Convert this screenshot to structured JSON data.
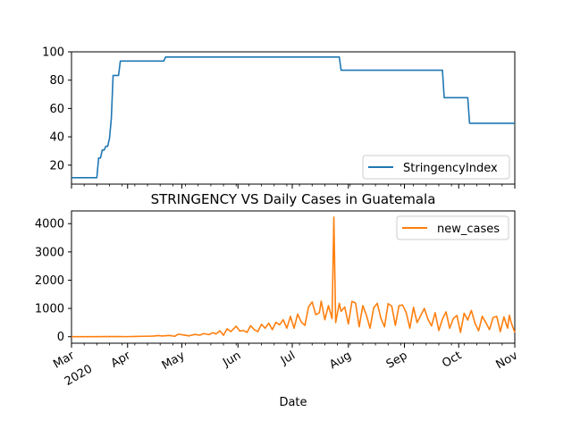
{
  "chart_data": [
    {
      "type": "line",
      "title": "",
      "xlabel": "",
      "ylabel": "",
      "ylim": [
        6.6,
        100
      ],
      "yticks": [
        20,
        40,
        60,
        80,
        100
      ],
      "x_range": [
        "2020-03-01",
        "2020-11-01"
      ],
      "legend_position": "lower right",
      "series": [
        {
          "name": "StringencyIndex",
          "color": "#1f77b4",
          "points": [
            [
              "2020-03-01",
              11.11
            ],
            [
              "2020-03-15",
              11.11
            ],
            [
              "2020-03-16",
              25.0
            ],
            [
              "2020-03-17",
              25.0
            ],
            [
              "2020-03-18",
              30.6
            ],
            [
              "2020-03-19",
              30.6
            ],
            [
              "2020-03-20",
              33.3
            ],
            [
              "2020-03-21",
              33.3
            ],
            [
              "2020-03-22",
              38.9
            ],
            [
              "2020-03-23",
              52.8
            ],
            [
              "2020-03-24",
              83.3
            ],
            [
              "2020-03-27",
              83.3
            ],
            [
              "2020-03-28",
              93.52
            ],
            [
              "2020-04-21",
              93.52
            ],
            [
              "2020-04-22",
              96.3
            ],
            [
              "2020-07-27",
              96.3
            ],
            [
              "2020-07-28",
              87.04
            ],
            [
              "2020-09-22",
              87.04
            ],
            [
              "2020-09-23",
              67.59
            ],
            [
              "2020-10-06",
              67.59
            ],
            [
              "2020-10-07",
              49.54
            ],
            [
              "2020-11-01",
              49.54
            ]
          ]
        }
      ]
    },
    {
      "type": "line",
      "title": "STRINGENCY VS Daily Cases in Guatemala",
      "xlabel": "Date",
      "ylabel": "",
      "ylim": [
        -230,
        4450
      ],
      "yticks": [
        0,
        1000,
        2000,
        3000,
        4000
      ],
      "x_range": [
        "2020-03-01",
        "2020-11-01"
      ],
      "x_ticks": [
        {
          "date": "2020-03-01",
          "label": "Mar",
          "sublabel": "2020"
        },
        {
          "date": "2020-04-01",
          "label": "Apr",
          "sublabel": ""
        },
        {
          "date": "2020-05-01",
          "label": "May",
          "sublabel": ""
        },
        {
          "date": "2020-06-01",
          "label": "Jun",
          "sublabel": ""
        },
        {
          "date": "2020-07-01",
          "label": "Jul",
          "sublabel": ""
        },
        {
          "date": "2020-08-01",
          "label": "Aug",
          "sublabel": ""
        },
        {
          "date": "2020-09-01",
          "label": "Sep",
          "sublabel": ""
        },
        {
          "date": "2020-10-01",
          "label": "Oct",
          "sublabel": ""
        },
        {
          "date": "2020-11-01",
          "label": "Nov",
          "sublabel": ""
        }
      ],
      "legend_position": "upper right",
      "series": [
        {
          "name": "new_cases",
          "color": "#ff7f0e",
          "points": [
            [
              "2020-03-01",
              0
            ],
            [
              "2020-03-13",
              1
            ],
            [
              "2020-03-20",
              4
            ],
            [
              "2020-03-27",
              5
            ],
            [
              "2020-04-01",
              3
            ],
            [
              "2020-04-05",
              10
            ],
            [
              "2020-04-10",
              15
            ],
            [
              "2020-04-15",
              20
            ],
            [
              "2020-04-18",
              40
            ],
            [
              "2020-04-20",
              25
            ],
            [
              "2020-04-24",
              45
            ],
            [
              "2020-04-27",
              15
            ],
            [
              "2020-04-29",
              90
            ],
            [
              "2020-05-02",
              60
            ],
            [
              "2020-05-05",
              30
            ],
            [
              "2020-05-08",
              80
            ],
            [
              "2020-05-11",
              55
            ],
            [
              "2020-05-13",
              110
            ],
            [
              "2020-05-16",
              75
            ],
            [
              "2020-05-18",
              140
            ],
            [
              "2020-05-20",
              100
            ],
            [
              "2020-05-22",
              210
            ],
            [
              "2020-05-24",
              50
            ],
            [
              "2020-05-26",
              280
            ],
            [
              "2020-05-28",
              180
            ],
            [
              "2020-05-31",
              370
            ],
            [
              "2020-06-02",
              200
            ],
            [
              "2020-06-04",
              220
            ],
            [
              "2020-06-06",
              150
            ],
            [
              "2020-06-08",
              390
            ],
            [
              "2020-06-10",
              250
            ],
            [
              "2020-06-12",
              180
            ],
            [
              "2020-06-14",
              440
            ],
            [
              "2020-06-16",
              300
            ],
            [
              "2020-06-18",
              480
            ],
            [
              "2020-06-20",
              250
            ],
            [
              "2020-06-22",
              510
            ],
            [
              "2020-06-24",
              420
            ],
            [
              "2020-06-26",
              600
            ],
            [
              "2020-06-28",
              300
            ],
            [
              "2020-06-30",
              720
            ],
            [
              "2020-07-02",
              300
            ],
            [
              "2020-07-04",
              800
            ],
            [
              "2020-07-06",
              520
            ],
            [
              "2020-07-08",
              400
            ],
            [
              "2020-07-10",
              1050
            ],
            [
              "2020-07-12",
              1230
            ],
            [
              "2020-07-14",
              780
            ],
            [
              "2020-07-16",
              850
            ],
            [
              "2020-07-17",
              1260
            ],
            [
              "2020-07-19",
              600
            ],
            [
              "2020-07-21",
              1100
            ],
            [
              "2020-07-23",
              640
            ],
            [
              "2020-07-24",
              4230
            ],
            [
              "2020-07-25",
              500
            ],
            [
              "2020-07-27",
              1180
            ],
            [
              "2020-07-28",
              900
            ],
            [
              "2020-07-30",
              1050
            ],
            [
              "2020-08-01",
              450
            ],
            [
              "2020-08-03",
              1250
            ],
            [
              "2020-08-05",
              1190
            ],
            [
              "2020-08-07",
              350
            ],
            [
              "2020-08-09",
              1100
            ],
            [
              "2020-08-11",
              760
            ],
            [
              "2020-08-13",
              300
            ],
            [
              "2020-08-15",
              1020
            ],
            [
              "2020-08-17",
              1180
            ],
            [
              "2020-08-19",
              650
            ],
            [
              "2020-08-21",
              350
            ],
            [
              "2020-08-23",
              1170
            ],
            [
              "2020-08-25",
              1080
            ],
            [
              "2020-08-27",
              400
            ],
            [
              "2020-08-29",
              1100
            ],
            [
              "2020-08-31",
              1120
            ],
            [
              "2020-09-02",
              850
            ],
            [
              "2020-09-04",
              300
            ],
            [
              "2020-09-06",
              1040
            ],
            [
              "2020-09-08",
              500
            ],
            [
              "2020-09-10",
              750
            ],
            [
              "2020-09-12",
              1000
            ],
            [
              "2020-09-14",
              620
            ],
            [
              "2020-09-16",
              380
            ],
            [
              "2020-09-18",
              850
            ],
            [
              "2020-09-20",
              220
            ],
            [
              "2020-09-22",
              620
            ],
            [
              "2020-09-24",
              880
            ],
            [
              "2020-09-26",
              300
            ],
            [
              "2020-09-28",
              640
            ],
            [
              "2020-09-30",
              750
            ],
            [
              "2020-10-02",
              150
            ],
            [
              "2020-10-04",
              830
            ],
            [
              "2020-10-06",
              590
            ],
            [
              "2020-10-08",
              930
            ],
            [
              "2020-10-10",
              480
            ],
            [
              "2020-10-12",
              210
            ],
            [
              "2020-10-14",
              720
            ],
            [
              "2020-10-16",
              500
            ],
            [
              "2020-10-18",
              250
            ],
            [
              "2020-10-20",
              680
            ],
            [
              "2020-10-22",
              720
            ],
            [
              "2020-10-24",
              180
            ],
            [
              "2020-10-26",
              700
            ],
            [
              "2020-10-28",
              300
            ],
            [
              "2020-10-29",
              760
            ],
            [
              "2020-10-30",
              500
            ],
            [
              "2020-11-01",
              150
            ]
          ]
        }
      ]
    }
  ]
}
